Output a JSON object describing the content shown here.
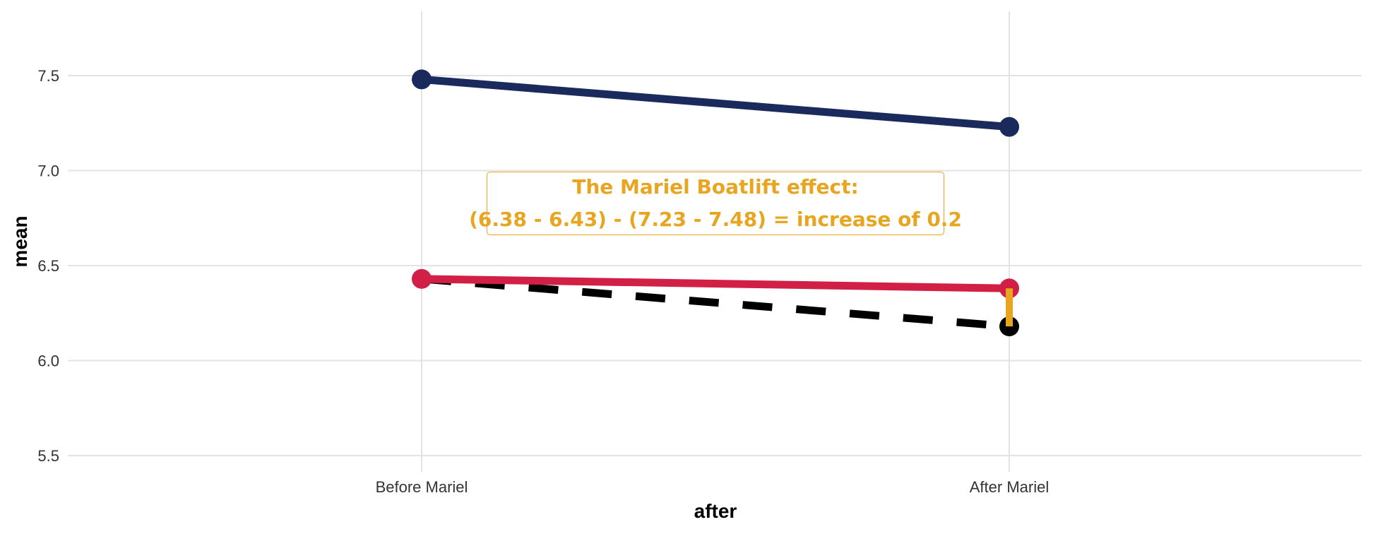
{
  "chart_data": {
    "type": "line",
    "categories": [
      "Before Mariel",
      "After Mariel"
    ],
    "series": [
      {
        "key": "top",
        "color": "#1B2A5C",
        "values": [
          7.48,
          7.23
        ],
        "style": "solid"
      },
      {
        "key": "treated",
        "color": "#D21F45",
        "values": [
          6.43,
          6.38
        ],
        "style": "solid"
      },
      {
        "key": "counterfactual",
        "color": "#000000",
        "values": [
          6.43,
          6.18
        ],
        "style": "dashed"
      }
    ],
    "effect_segment": {
      "color": "#E8A520",
      "from": 6.38,
      "to": 6.18,
      "category": "After Mariel"
    },
    "xlabel": "after",
    "ylabel": "mean",
    "ylim": [
      5.45,
      7.78
    ],
    "yticks": [
      5.5,
      6.0,
      6.5,
      7.0,
      7.5
    ],
    "ytick_labels": [
      "5.5",
      "6.0",
      "6.5",
      "7.0",
      "7.5"
    ],
    "grid": true,
    "annotation": {
      "line1": "The Mariel Boatlift effect:",
      "line2": "(6.38 - 6.43) - (7.23 - 7.48) = increase of 0.2",
      "color": "#E8A520"
    }
  }
}
